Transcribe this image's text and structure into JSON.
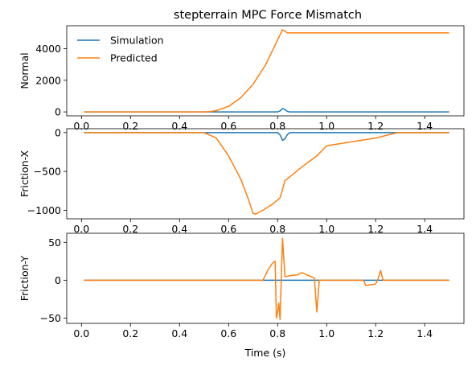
{
  "title": "stepterrain MPC Force Mismatch",
  "colors": {
    "simulation": "#1f77b4",
    "predicted": "#ff7f0e"
  },
  "chart_data": [
    {
      "type": "line",
      "title": "stepterrain MPC Force Mismatch",
      "ylabel": "Normal",
      "xlabel": "",
      "xlim": [
        -0.06,
        1.56
      ],
      "ylim": [
        -250,
        5450
      ],
      "xticks": [
        0.0,
        0.2,
        0.4,
        0.6,
        0.8,
        1.0,
        1.2,
        1.4
      ],
      "xtick_labels": [
        "0.0",
        "0.2",
        "0.4",
        "0.6",
        "0.8",
        "1.0",
        "1.2",
        "1.4"
      ],
      "yticks": [
        0,
        2000,
        4000
      ],
      "ytick_labels": [
        "0",
        "2000",
        "4000"
      ],
      "legend": {
        "position": "top-left",
        "entries": [
          "Simulation",
          "Predicted"
        ]
      },
      "series": [
        {
          "name": "Simulation",
          "color": "#1f77b4",
          "points": [
            [
              0.01,
              0
            ],
            [
              0.8,
              0
            ],
            [
              0.81,
              60
            ],
            [
              0.82,
              210
            ],
            [
              0.83,
              150
            ],
            [
              0.84,
              30
            ],
            [
              0.85,
              0
            ],
            [
              1.5,
              0
            ]
          ]
        },
        {
          "name": "Predicted",
          "color": "#ff7f0e",
          "points": [
            [
              0.01,
              0
            ],
            [
              0.5,
              0
            ],
            [
              0.52,
              10
            ],
            [
              0.55,
              80
            ],
            [
              0.6,
              350
            ],
            [
              0.65,
              900
            ],
            [
              0.7,
              1750
            ],
            [
              0.75,
              2950
            ],
            [
              0.8,
              4550
            ],
            [
              0.82,
              5200
            ],
            [
              0.83,
              5100
            ],
            [
              0.84,
              5000
            ],
            [
              1.5,
              5000
            ]
          ]
        }
      ]
    },
    {
      "type": "line",
      "ylabel": "Friction-X",
      "xlabel": "",
      "xlim": [
        -0.06,
        1.56
      ],
      "ylim": [
        -1110,
        50
      ],
      "xticks": [
        0.0,
        0.2,
        0.4,
        0.6,
        0.8,
        1.0,
        1.2,
        1.4
      ],
      "xtick_labels": [
        "0.0",
        "0.2",
        "0.4",
        "0.6",
        "0.8",
        "1.0",
        "1.2",
        "1.4"
      ],
      "yticks": [
        0,
        -500,
        -1000
      ],
      "ytick_labels": [
        "0",
        "−500",
        "−1000"
      ],
      "series": [
        {
          "name": "Simulation",
          "color": "#1f77b4",
          "points": [
            [
              0.01,
              0
            ],
            [
              0.8,
              0
            ],
            [
              0.81,
              -30
            ],
            [
              0.82,
              -100
            ],
            [
              0.83,
              -80
            ],
            [
              0.84,
              -25
            ],
            [
              0.85,
              0
            ],
            [
              1.5,
              0
            ]
          ]
        },
        {
          "name": "Predicted",
          "color": "#ff7f0e",
          "points": [
            [
              0.01,
              0
            ],
            [
              0.5,
              0
            ],
            [
              0.55,
              -70
            ],
            [
              0.6,
              -300
            ],
            [
              0.65,
              -600
            ],
            [
              0.68,
              -850
            ],
            [
              0.7,
              -1040
            ],
            [
              0.71,
              -1050
            ],
            [
              0.74,
              -1000
            ],
            [
              0.78,
              -920
            ],
            [
              0.81,
              -840
            ],
            [
              0.83,
              -620
            ],
            [
              0.9,
              -440
            ],
            [
              0.96,
              -300
            ],
            [
              1.0,
              -170
            ],
            [
              1.1,
              -120
            ],
            [
              1.2,
              -70
            ],
            [
              1.29,
              0
            ],
            [
              1.5,
              0
            ]
          ]
        }
      ]
    },
    {
      "type": "line",
      "ylabel": "Friction-Y",
      "xlabel": "Time (s)",
      "xlim": [
        -0.06,
        1.56
      ],
      "ylim": [
        -57,
        62
      ],
      "xticks": [
        0.0,
        0.2,
        0.4,
        0.6,
        0.8,
        1.0,
        1.2,
        1.4
      ],
      "xtick_labels": [
        "0.0",
        "0.2",
        "0.4",
        "0.6",
        "0.8",
        "1.0",
        "1.2",
        "1.4"
      ],
      "yticks": [
        50,
        0,
        -50
      ],
      "ytick_labels": [
        "50",
        "0",
        "−50"
      ],
      "series": [
        {
          "name": "Simulation",
          "color": "#1f77b4",
          "points": [
            [
              0.01,
              0
            ],
            [
              1.5,
              0
            ]
          ]
        },
        {
          "name": "Predicted",
          "color": "#ff7f0e",
          "points": [
            [
              0.01,
              0
            ],
            [
              0.74,
              0
            ],
            [
              0.76,
              13
            ],
            [
              0.78,
              23
            ],
            [
              0.79,
              25
            ],
            [
              0.795,
              -50
            ],
            [
              0.8,
              -42
            ],
            [
              0.805,
              -30
            ],
            [
              0.81,
              -52
            ],
            [
              0.82,
              55
            ],
            [
              0.83,
              5
            ],
            [
              0.84,
              5
            ],
            [
              0.85,
              6
            ],
            [
              0.88,
              7
            ],
            [
              0.9,
              10
            ],
            [
              0.92,
              7
            ],
            [
              0.95,
              3
            ],
            [
              0.96,
              -42
            ],
            [
              0.97,
              0
            ],
            [
              1.15,
              0
            ],
            [
              1.16,
              -7
            ],
            [
              1.18,
              -6
            ],
            [
              1.2,
              -5
            ],
            [
              1.21,
              2
            ],
            [
              1.22,
              13
            ],
            [
              1.23,
              0
            ],
            [
              1.5,
              0
            ]
          ]
        }
      ]
    }
  ]
}
